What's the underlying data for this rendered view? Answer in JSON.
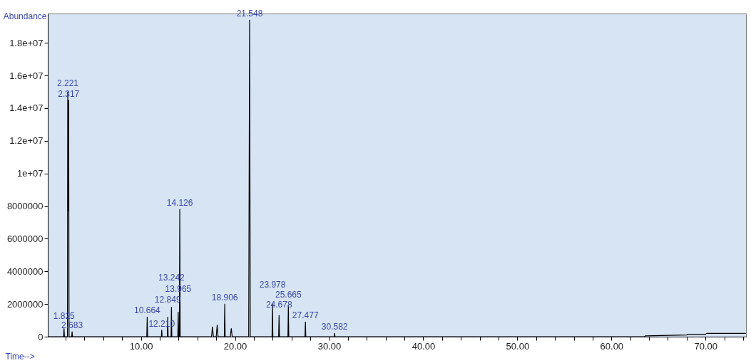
{
  "chart_data": {
    "type": "line",
    "xlabel": "Time-->",
    "ylabel": "Abundance",
    "series": [
      {
        "color": "#000000",
        "x": [
          0.1,
          1.78,
          1.825,
          1.87,
          2.19,
          2.221,
          2.26,
          2.317,
          2.36,
          2.64,
          2.683,
          2.73,
          10.62,
          10.664,
          10.71,
          12.17,
          12.21,
          12.25,
          12.8,
          12.849,
          12.89,
          13.2,
          13.242,
          13.28,
          13.92,
          13.965,
          14.0,
          14.08,
          14.126,
          14.17,
          17.5,
          17.6,
          17.7,
          18.0,
          18.1,
          18.2,
          18.86,
          18.906,
          18.95,
          19.5,
          19.6,
          19.7,
          21.45,
          21.548,
          21.62,
          23.93,
          23.978,
          24.02,
          24.63,
          24.678,
          24.72,
          25.62,
          25.665,
          25.71,
          27.43,
          27.477,
          27.52,
          30.54,
          30.582,
          30.62,
          63.5,
          63.6,
          68.0,
          68.1,
          70.0,
          70.1,
          74.3
        ],
        "values": [
          0,
          0,
          500000,
          0,
          0,
          15000000,
          7700000,
          14500000,
          0,
          0,
          300000,
          0,
          0,
          1200000,
          0,
          0,
          400000,
          0,
          0,
          1200000,
          0,
          0,
          1800000,
          0,
          0,
          1500000,
          0,
          0,
          7800000,
          0,
          0,
          600000,
          0,
          0,
          700000,
          0,
          0,
          2000000,
          0,
          0,
          500000,
          0,
          0,
          19400000,
          0,
          0,
          2000000,
          0,
          0,
          1300000,
          0,
          0,
          1900000,
          0,
          0,
          900000,
          0,
          0,
          200000,
          0,
          0,
          50000,
          100000,
          150000,
          150000,
          200000,
          200000
        ]
      }
    ],
    "annotations": [
      {
        "text": "1.825",
        "x": 1.825,
        "y": 500000
      },
      {
        "text": "2.221",
        "x": 2.221,
        "y": 15000000
      },
      {
        "text": "2.317",
        "x": 2.317,
        "y": 14500000
      },
      {
        "text": "2.683",
        "x": 2.683,
        "y": 300000
      },
      {
        "text": "10.664",
        "x": 10.664,
        "y": 1200000
      },
      {
        "text": "12.210",
        "x": 12.21,
        "y": 400000
      },
      {
        "text": "12.849",
        "x": 12.849,
        "y": 1200000
      },
      {
        "text": "13.242",
        "x": 13.242,
        "y": 1800000
      },
      {
        "text": "13.965",
        "x": 13.965,
        "y": 1500000
      },
      {
        "text": "14.126",
        "x": 14.126,
        "y": 7800000
      },
      {
        "text": "18.906",
        "x": 18.906,
        "y": 2000000
      },
      {
        "text": "21.548",
        "x": 21.548,
        "y": 19400000
      },
      {
        "text": "23.978",
        "x": 23.978,
        "y": 2000000
      },
      {
        "text": "24.678",
        "x": 24.678,
        "y": 1300000
      },
      {
        "text": "25.665",
        "x": 25.665,
        "y": 1900000
      },
      {
        "text": "27.477",
        "x": 27.477,
        "y": 900000
      },
      {
        "text": "30.582",
        "x": 30.582,
        "y": 200000
      }
    ],
    "xlim": [
      0.1,
      74.3
    ],
    "ylim": [
      0,
      19800000
    ],
    "xticks": [
      {
        "value": 2,
        "label": null
      },
      {
        "value": 4,
        "label": null
      },
      {
        "value": 6,
        "label": null
      },
      {
        "value": 8,
        "label": null
      },
      {
        "value": 10,
        "label": "10.00"
      },
      {
        "value": 12,
        "label": null
      },
      {
        "value": 14,
        "label": null
      },
      {
        "value": 16,
        "label": null
      },
      {
        "value": 18,
        "label": null
      },
      {
        "value": 20,
        "label": "20.00"
      },
      {
        "value": 22,
        "label": null
      },
      {
        "value": 24,
        "label": null
      },
      {
        "value": 26,
        "label": null
      },
      {
        "value": 28,
        "label": null
      },
      {
        "value": 30,
        "label": "30.00"
      },
      {
        "value": 32,
        "label": null
      },
      {
        "value": 34,
        "label": null
      },
      {
        "value": 36,
        "label": null
      },
      {
        "value": 38,
        "label": null
      },
      {
        "value": 40,
        "label": "40.00"
      },
      {
        "value": 42,
        "label": null
      },
      {
        "value": 44,
        "label": null
      },
      {
        "value": 46,
        "label": null
      },
      {
        "value": 48,
        "label": null
      },
      {
        "value": 50,
        "label": "50.00"
      },
      {
        "value": 52,
        "label": null
      },
      {
        "value": 54,
        "label": null
      },
      {
        "value": 56,
        "label": null
      },
      {
        "value": 58,
        "label": null
      },
      {
        "value": 60,
        "label": "60.00"
      },
      {
        "value": 62,
        "label": null
      },
      {
        "value": 64,
        "label": null
      },
      {
        "value": 66,
        "label": null
      },
      {
        "value": 68,
        "label": null
      },
      {
        "value": 70,
        "label": "70.00"
      },
      {
        "value": 72,
        "label": null
      },
      {
        "value": 74,
        "label": null
      }
    ],
    "yticks": [
      0,
      2000000,
      4000000,
      6000000,
      8000000,
      {
        "value": 10000000,
        "label": "1e+07"
      },
      {
        "value": 12000000,
        "label": "1.2e+07"
      },
      {
        "value": 14000000,
        "label": "1.4e+07"
      },
      {
        "value": 16000000,
        "label": "1.6e+07"
      },
      {
        "value": 18000000,
        "label": "1.8e+07"
      }
    ],
    "grid": false,
    "marker": "none",
    "line_style": "solid"
  }
}
